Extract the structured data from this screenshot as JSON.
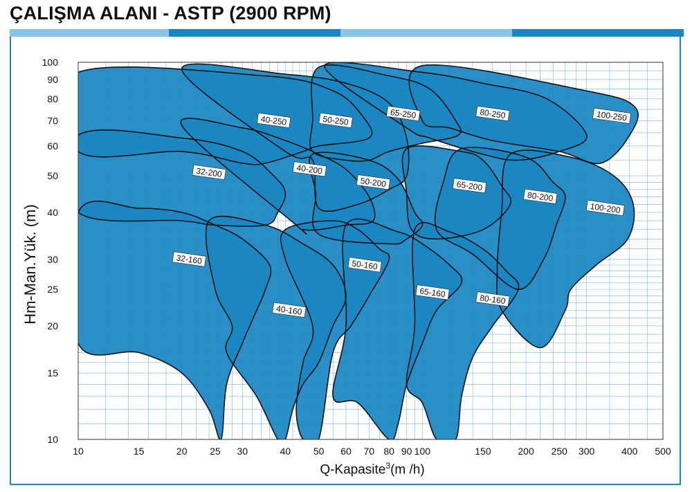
{
  "page": {
    "title": "ÇALIŞMA ALANI - ASTP (2900 RPM)",
    "bar_colors": [
      "#86c5e8",
      "#1a87c4",
      "#86c5e8",
      "#1a87c4"
    ]
  },
  "chart_data": {
    "type": "area",
    "title": "ÇALIŞMA ALANI - ASTP (2900 RPM)",
    "xlabel_prefix": "Q-Kapasite",
    "xlabel_sup": "3",
    "xlabel_suffix": "(m /h)",
    "ylabel": "Hm-Man.Yük. (m)",
    "x_scale": "log",
    "y_scale": "log",
    "xlim": [
      10,
      500
    ],
    "ylim": [
      10,
      100
    ],
    "x_ticks": [
      10,
      15,
      20,
      25,
      30,
      40,
      50,
      60,
      70,
      80,
      90,
      100,
      150,
      200,
      250,
      300,
      400,
      500
    ],
    "y_ticks": [
      10,
      15,
      20,
      25,
      30,
      40,
      50,
      60,
      70,
      80,
      90,
      100
    ],
    "grid": true,
    "colors": {
      "fill": "#1a86c2",
      "outline": "#111111",
      "grid": "#6cb8e2",
      "label_box": "#ffffff"
    },
    "series": [
      {
        "name": "100-250",
        "label_at": [
          355,
          72
        ],
        "boundary": [
          [
            100,
            98
          ],
          [
            300,
            84
          ],
          [
            415,
            76
          ],
          [
            400,
            64
          ],
          [
            330,
            54
          ],
          [
            250,
            58
          ],
          [
            160,
            62
          ],
          [
            120,
            67
          ],
          [
            100,
            70
          ]
        ]
      },
      {
        "name": "80-250",
        "label_at": [
          160,
          73
        ],
        "boundary": [
          [
            52,
            98
          ],
          [
            100,
            94
          ],
          [
            150,
            88
          ],
          [
            230,
            80
          ],
          [
            300,
            64
          ],
          [
            250,
            58
          ],
          [
            190,
            55
          ],
          [
            150,
            57
          ],
          [
            105,
            63
          ],
          [
            90,
            67
          ]
        ]
      },
      {
        "name": "65-250",
        "label_at": [
          88,
          73
        ],
        "boundary": [
          [
            50,
            97
          ],
          [
            80,
            92
          ],
          [
            105,
            85
          ],
          [
            125,
            70
          ],
          [
            127,
            64
          ],
          [
            100,
            61
          ],
          [
            80,
            58
          ],
          [
            70,
            55
          ],
          [
            60,
            55
          ],
          [
            48,
            58
          ],
          [
            48,
            70
          ]
        ]
      },
      {
        "name": "50-250",
        "label_at": [
          56,
          70
        ],
        "boundary": [
          [
            20,
            96
          ],
          [
            40,
            93
          ],
          [
            60,
            88
          ],
          [
            80,
            78
          ],
          [
            90,
            63
          ],
          [
            90,
            50
          ],
          [
            80,
            46
          ],
          [
            65,
            42
          ],
          [
            50,
            41
          ],
          [
            48,
            55
          ],
          [
            40,
            58
          ]
        ]
      },
      {
        "name": "40-250",
        "label_at": [
          37,
          70
        ],
        "boundary": [
          [
            10,
            94
          ],
          [
            35,
            92
          ],
          [
            55,
            84
          ],
          [
            67,
            72
          ],
          [
            70,
            63
          ],
          [
            50,
            60
          ],
          [
            45,
            58
          ],
          [
            35,
            54
          ],
          [
            30,
            54
          ],
          [
            20,
            58
          ],
          [
            10,
            58
          ]
        ]
      },
      {
        "name": "100-200",
        "label_at": [
          340,
          41
        ],
        "boundary": [
          [
            180,
            57
          ],
          [
            270,
            56
          ],
          [
            360,
            50
          ],
          [
            410,
            42
          ],
          [
            395,
            34
          ],
          [
            320,
            29
          ],
          [
            270,
            25
          ],
          [
            260,
            22
          ],
          [
            220,
            17.5
          ],
          [
            170,
            22
          ],
          [
            165,
            28
          ],
          [
            170,
            40
          ]
        ]
      },
      {
        "name": "80-200",
        "label_at": [
          220,
          44
        ],
        "boundary": [
          [
            130,
            59
          ],
          [
            200,
            56
          ],
          [
            240,
            48
          ],
          [
            260,
            44
          ],
          [
            245,
            37
          ],
          [
            225,
            30
          ],
          [
            190,
            25
          ],
          [
            140,
            31
          ],
          [
            110,
            36
          ],
          [
            115,
            48
          ]
        ]
      },
      {
        "name": "65-200",
        "label_at": [
          137,
          47
        ],
        "boundary": [
          [
            90,
            59
          ],
          [
            130,
            58
          ],
          [
            150,
            55
          ],
          [
            170,
            47
          ],
          [
            180,
            42
          ],
          [
            150,
            36
          ],
          [
            110,
            34
          ],
          [
            93,
            36
          ],
          [
            90,
            45
          ]
        ]
      },
      {
        "name": "50-200",
        "label_at": [
          72,
          48
        ],
        "boundary": [
          [
            48,
            57
          ],
          [
            70,
            55
          ],
          [
            85,
            49
          ],
          [
            95,
            40
          ],
          [
            100,
            37
          ],
          [
            90,
            34
          ],
          [
            80,
            33
          ],
          [
            50,
            35
          ],
          [
            49,
            45
          ]
        ]
      },
      {
        "name": "40-200",
        "label_at": [
          47,
          52
        ],
        "boundary": [
          [
            20,
            68
          ],
          [
            30,
            67
          ],
          [
            40,
            62
          ],
          [
            50,
            57
          ],
          [
            60,
            52
          ],
          [
            70,
            44
          ],
          [
            72,
            38
          ],
          [
            60,
            37
          ],
          [
            50,
            36
          ],
          [
            45,
            36
          ],
          [
            43,
            37
          ]
        ]
      },
      {
        "name": "32-200",
        "label_at": [
          24,
          51
        ],
        "boundary": [
          [
            10,
            64
          ],
          [
            20,
            63
          ],
          [
            30,
            58
          ],
          [
            37,
            50
          ],
          [
            40,
            45
          ],
          [
            38,
            40
          ],
          [
            35,
            37
          ],
          [
            25,
            37
          ],
          [
            20,
            38
          ],
          [
            10,
            40
          ]
        ]
      },
      {
        "name": "80-160",
        "label_at": [
          160,
          23.5
        ],
        "boundary": [
          [
            95,
            36
          ],
          [
            120,
            35.5
          ],
          [
            150,
            32
          ],
          [
            175,
            28
          ],
          [
            190,
            25
          ],
          [
            160,
            20
          ],
          [
            140,
            16.5
          ],
          [
            130,
            13
          ],
          [
            125,
            10
          ],
          [
            110,
            10
          ],
          [
            100,
            12.5
          ],
          [
            90,
            14
          ],
          [
            95,
            20
          ]
        ]
      },
      {
        "name": "65-160",
        "label_at": [
          107,
          24.5
        ],
        "boundary": [
          [
            60,
            37
          ],
          [
            85,
            35.5
          ],
          [
            100,
            33
          ],
          [
            120,
            29
          ],
          [
            130,
            26
          ],
          [
            110,
            22
          ],
          [
            100,
            18
          ],
          [
            90,
            14
          ],
          [
            85,
            11
          ],
          [
            80,
            10
          ],
          [
            65,
            12.5
          ],
          [
            55,
            13
          ],
          [
            60,
            20
          ]
        ]
      },
      {
        "name": "50-160",
        "label_at": [
          68,
          29
        ],
        "boundary": [
          [
            40,
            36
          ],
          [
            55,
            38
          ],
          [
            65,
            36
          ],
          [
            75,
            32
          ],
          [
            80,
            30
          ],
          [
            70,
            24
          ],
          [
            62,
            20
          ],
          [
            55,
            17
          ],
          [
            50,
            10
          ],
          [
            45,
            10
          ],
          [
            43,
            12
          ],
          [
            45,
            16
          ],
          [
            48,
            20
          ],
          [
            40,
            30
          ]
        ]
      },
      {
        "name": "40-160",
        "label_at": [
          41,
          22
        ],
        "boundary": [
          [
            24,
            38
          ],
          [
            35,
            37
          ],
          [
            45,
            33
          ],
          [
            55,
            29
          ],
          [
            60,
            24
          ],
          [
            55,
            20
          ],
          [
            50,
            16
          ],
          [
            45,
            14
          ],
          [
            42,
            12
          ],
          [
            40,
            10
          ],
          [
            38,
            10
          ],
          [
            33,
            13
          ],
          [
            27,
            17
          ],
          [
            28,
            20
          ],
          [
            25,
            25
          ]
        ]
      },
      {
        "name": "32-160",
        "label_at": [
          21,
          30
        ],
        "boundary": [
          [
            10,
            40
          ],
          [
            15,
            41
          ],
          [
            20,
            40
          ],
          [
            25,
            37
          ],
          [
            30,
            34
          ],
          [
            36,
            29
          ],
          [
            35,
            25
          ],
          [
            33,
            22
          ],
          [
            30,
            18
          ],
          [
            27,
            14
          ],
          [
            26,
            10
          ],
          [
            24,
            12
          ],
          [
            20,
            15
          ],
          [
            15,
            17
          ],
          [
            10,
            18
          ]
        ]
      }
    ]
  }
}
